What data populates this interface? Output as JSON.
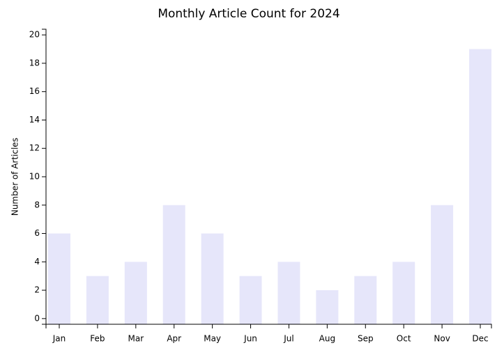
{
  "chart_data": {
    "type": "bar",
    "title": "Monthly Article Count for 2024",
    "y_label": "Number of Articles",
    "categories": [
      "Jan",
      "Feb",
      "Mar",
      "Apr",
      "May",
      "Jun",
      "Jul",
      "Aug",
      "Sep",
      "Oct",
      "Nov",
      "Dec"
    ],
    "values": [
      6,
      3,
      4,
      8,
      6,
      3,
      4,
      2,
      3,
      4,
      8,
      19
    ],
    "color": "#e6e6fa",
    "ylim": [
      -0.4,
      20.4
    ],
    "yticks": [
      0,
      2,
      4,
      6,
      8,
      10,
      12,
      14,
      16,
      18,
      20
    ]
  }
}
